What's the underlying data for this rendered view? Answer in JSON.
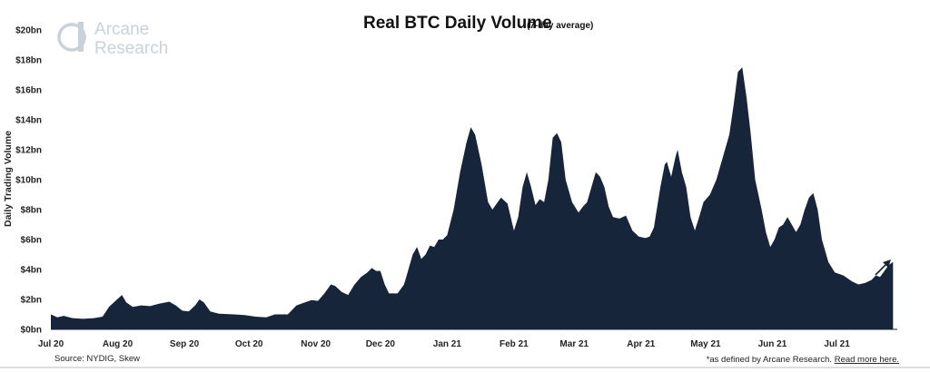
{
  "logo": {
    "line1": "Arcane",
    "line2": "Research"
  },
  "source": "Source: NYDIG, Skew",
  "footnote": {
    "prefix": "*as defined by Arcane Research. ",
    "link": "Read more here."
  },
  "colors": {
    "area": "#17253b",
    "arrow": "#17253b",
    "logo": "#c8d2db"
  },
  "chart_data": {
    "type": "area",
    "title": "Real BTC Daily Volume",
    "subtitle": "(7-day average)",
    "ylabel": "Daily Trading Volume",
    "xlabel": "",
    "ylim": [
      0,
      20
    ],
    "unit": "bn USD",
    "y_ticks": [
      {
        "value": 0,
        "label": "$0bn"
      },
      {
        "value": 2,
        "label": "$2bn"
      },
      {
        "value": 4,
        "label": "$4bn"
      },
      {
        "value": 6,
        "label": "$6bn"
      },
      {
        "value": 8,
        "label": "$8bn"
      },
      {
        "value": 10,
        "label": "$10bn"
      },
      {
        "value": 12,
        "label": "$12bn"
      },
      {
        "value": 14,
        "label": "$14bn"
      },
      {
        "value": 16,
        "label": "$16bn"
      },
      {
        "value": 18,
        "label": "$18bn"
      },
      {
        "value": 20,
        "label": "$20bn"
      }
    ],
    "x_ticks": [
      {
        "day": 0,
        "label": "Jul 20"
      },
      {
        "day": 31,
        "label": "Aug 20"
      },
      {
        "day": 62,
        "label": "Sep 20"
      },
      {
        "day": 92,
        "label": "Oct 20"
      },
      {
        "day": 123,
        "label": "Nov 20"
      },
      {
        "day": 153,
        "label": "Dec 20"
      },
      {
        "day": 184,
        "label": "Jan 21"
      },
      {
        "day": 215,
        "label": "Feb 21"
      },
      {
        "day": 243,
        "label": "Mar 21"
      },
      {
        "day": 274,
        "label": "Apr 21"
      },
      {
        "day": 304,
        "label": "May 21"
      },
      {
        "day": 335,
        "label": "Jun 21"
      },
      {
        "day": 365,
        "label": "Jul 21"
      }
    ],
    "x_range_days": [
      0,
      393
    ],
    "series": [
      {
        "name": "Real BTC Daily Volume (7-day average)",
        "points": [
          [
            0,
            1.0
          ],
          [
            3,
            0.8
          ],
          [
            6,
            0.9
          ],
          [
            10,
            0.75
          ],
          [
            15,
            0.7
          ],
          [
            20,
            0.75
          ],
          [
            24,
            0.85
          ],
          [
            27,
            1.5
          ],
          [
            30,
            1.9
          ],
          [
            33,
            2.3
          ],
          [
            35,
            1.8
          ],
          [
            38,
            1.5
          ],
          [
            42,
            1.6
          ],
          [
            46,
            1.55
          ],
          [
            50,
            1.7
          ],
          [
            55,
            1.85
          ],
          [
            58,
            1.6
          ],
          [
            61,
            1.25
          ],
          [
            64,
            1.2
          ],
          [
            67,
            1.6
          ],
          [
            69,
            2.0
          ],
          [
            71,
            1.8
          ],
          [
            74,
            1.2
          ],
          [
            78,
            1.05
          ],
          [
            85,
            1.0
          ],
          [
            90,
            0.95
          ],
          [
            95,
            0.85
          ],
          [
            100,
            0.8
          ],
          [
            104,
            1.0
          ],
          [
            110,
            1.0
          ],
          [
            114,
            1.6
          ],
          [
            118,
            1.8
          ],
          [
            121,
            1.95
          ],
          [
            124,
            1.9
          ],
          [
            127,
            2.4
          ],
          [
            130,
            3.0
          ],
          [
            132,
            2.9
          ],
          [
            135,
            2.5
          ],
          [
            138,
            2.3
          ],
          [
            141,
            3.0
          ],
          [
            144,
            3.5
          ],
          [
            147,
            3.8
          ],
          [
            149,
            4.1
          ],
          [
            151,
            3.9
          ],
          [
            153,
            3.9
          ],
          [
            155,
            3.0
          ],
          [
            157,
            2.4
          ],
          [
            161,
            2.4
          ],
          [
            164,
            3.0
          ],
          [
            166,
            4.0
          ],
          [
            168,
            5.0
          ],
          [
            170,
            5.5
          ],
          [
            172,
            4.7
          ],
          [
            174,
            5.0
          ],
          [
            176,
            5.6
          ],
          [
            178,
            5.5
          ],
          [
            180,
            6.0
          ],
          [
            182,
            6.0
          ],
          [
            184,
            6.3
          ],
          [
            187,
            8.0
          ],
          [
            190,
            10.5
          ],
          [
            193,
            12.5
          ],
          [
            195,
            13.5
          ],
          [
            197,
            13.0
          ],
          [
            200,
            11.0
          ],
          [
            203,
            8.5
          ],
          [
            205,
            8.0
          ],
          [
            207,
            8.4
          ],
          [
            209,
            8.8
          ],
          [
            212,
            8.4
          ],
          [
            215,
            6.6
          ],
          [
            217,
            7.5
          ],
          [
            219,
            9.5
          ],
          [
            221,
            10.5
          ],
          [
            223,
            9.5
          ],
          [
            225,
            8.3
          ],
          [
            227,
            8.7
          ],
          [
            229,
            8.5
          ],
          [
            231,
            10.0
          ],
          [
            233,
            12.8
          ],
          [
            235,
            13.1
          ],
          [
            237,
            12.5
          ],
          [
            239,
            10.0
          ],
          [
            242,
            8.5
          ],
          [
            245,
            7.8
          ],
          [
            247,
            8.2
          ],
          [
            249,
            8.5
          ],
          [
            251,
            9.5
          ],
          [
            253,
            10.5
          ],
          [
            255,
            10.2
          ],
          [
            257,
            9.5
          ],
          [
            259,
            8.2
          ],
          [
            261,
            7.5
          ],
          [
            264,
            7.4
          ],
          [
            267,
            7.6
          ],
          [
            270,
            6.6
          ],
          [
            273,
            6.2
          ],
          [
            276,
            6.1
          ],
          [
            278,
            6.2
          ],
          [
            280,
            6.8
          ],
          [
            283,
            9.5
          ],
          [
            285,
            11.0
          ],
          [
            286,
            11.2
          ],
          [
            288,
            10.2
          ],
          [
            290,
            11.5
          ],
          [
            291,
            12.0
          ],
          [
            293,
            10.5
          ],
          [
            295,
            9.5
          ],
          [
            297,
            7.5
          ],
          [
            299,
            6.6
          ],
          [
            301,
            7.5
          ],
          [
            303,
            8.5
          ],
          [
            306,
            9.0
          ],
          [
            309,
            10.0
          ],
          [
            312,
            11.5
          ],
          [
            315,
            13.0
          ],
          [
            317,
            15.0
          ],
          [
            319,
            17.2
          ],
          [
            321,
            17.5
          ],
          [
            323,
            15.5
          ],
          [
            325,
            13.0
          ],
          [
            327,
            10.0
          ],
          [
            330,
            8.0
          ],
          [
            332,
            6.5
          ],
          [
            334,
            5.5
          ],
          [
            336,
            6.0
          ],
          [
            338,
            6.8
          ],
          [
            340,
            7.0
          ],
          [
            342,
            7.5
          ],
          [
            344,
            7.0
          ],
          [
            346,
            6.5
          ],
          [
            348,
            7.0
          ],
          [
            350,
            8.0
          ],
          [
            352,
            8.8
          ],
          [
            354,
            9.1
          ],
          [
            356,
            8.0
          ],
          [
            358,
            6.0
          ],
          [
            361,
            4.5
          ],
          [
            364,
            3.8
          ],
          [
            368,
            3.6
          ],
          [
            372,
            3.2
          ],
          [
            375,
            3.0
          ],
          [
            378,
            3.1
          ],
          [
            381,
            3.3
          ],
          [
            383,
            3.6
          ],
          [
            385,
            3.5
          ],
          [
            387,
            3.9
          ],
          [
            389,
            4.3
          ],
          [
            391,
            4.5
          ]
        ]
      }
    ],
    "annotations": [
      {
        "type": "arrow",
        "direction": "up-right",
        "near_day": 384,
        "near_value": 4.0
      }
    ]
  }
}
